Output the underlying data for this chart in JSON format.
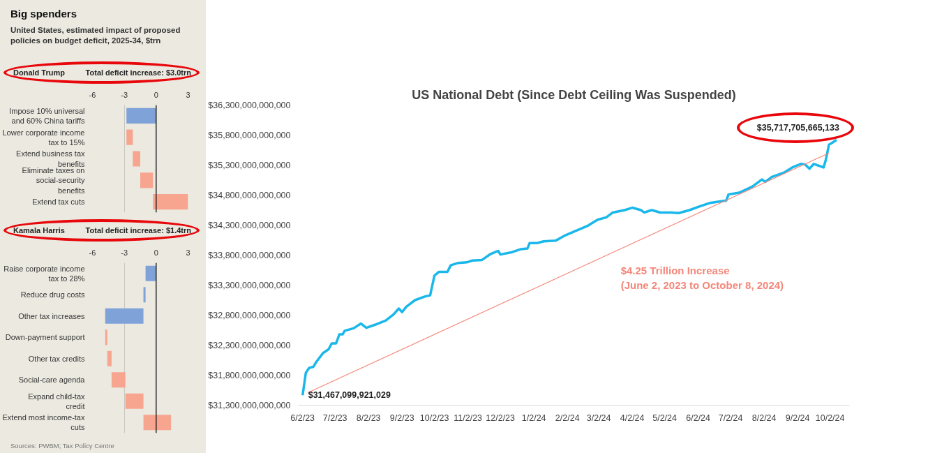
{
  "chart_data": [
    {
      "type": "bar",
      "title": "Big spenders",
      "subtitle": "United States, estimated impact of proposed policies on budget deficit, 2025-34, $trn",
      "orientation": "horizontal",
      "categories": [
        "Impose 10% universal and 60% China tariffs",
        "Lower corporate income tax to 15%",
        "Extend business tax benefits",
        "Eliminate taxes on social-security benefits",
        "Extend tax cuts"
      ],
      "base": [
        0,
        -2.8,
        -2.2,
        -1.5,
        -0.3
      ],
      "values": [
        -2.8,
        0.6,
        0.7,
        1.2,
        3.3
      ],
      "colors": [
        "#7fa3d9",
        "#f7a58f",
        "#f7a58f",
        "#f7a58f",
        "#f7a58f"
      ],
      "xlim": [
        -6,
        3
      ],
      "xticks": [
        -6,
        -3,
        0,
        3
      ],
      "grid": "x",
      "ref_lines": [
        {
          "axis": "x",
          "value": 0,
          "color": "#000000"
        }
      ],
      "annotations": [
        "Donald Trump",
        "Total deficit increase: $3.0trn"
      ]
    },
    {
      "type": "bar",
      "orientation": "horizontal",
      "categories": [
        "Raise corporate income tax to 28%",
        "Reduce drug costs",
        "Other tax increases",
        "Down-payment support",
        "Other tax credits",
        "Social-care agenda",
        "Expand child-tax credit",
        "Extend most income-tax cuts"
      ],
      "base": [
        0,
        -1.0,
        -1.2,
        -4.8,
        -4.6,
        -4.2,
        -2.9,
        -1.2
      ],
      "values": [
        -1.0,
        -0.2,
        -3.6,
        0.2,
        0.4,
        1.3,
        1.7,
        2.6
      ],
      "colors": [
        "#7fa3d9",
        "#7fa3d9",
        "#7fa3d9",
        "#f7a58f",
        "#f7a58f",
        "#f7a58f",
        "#f7a58f",
        "#f7a58f"
      ],
      "xlim": [
        -6,
        3
      ],
      "xticks": [
        -6,
        -3,
        0,
        3
      ],
      "grid": "x",
      "ref_lines": [
        {
          "axis": "x",
          "value": 0,
          "color": "#000000"
        }
      ],
      "annotations": [
        "Kamala Harris",
        "Total deficit increase: $1.4trn",
        "Sources: PWBM; Tax Policy Centre"
      ]
    },
    {
      "type": "line",
      "title": "US National Debt (Since Debt Ceiling Was Suspended)",
      "xlim": [
        "2023-05-29",
        "2024-10-20"
      ],
      "ylim": [
        31300000000000,
        36300000000000
      ],
      "xticks": [
        {
          "value": "2023-06-02",
          "label": "6/2/23"
        },
        {
          "value": "2023-07-02",
          "label": "7/2/23"
        },
        {
          "value": "2023-08-02",
          "label": "8/2/23"
        },
        {
          "value": "2023-09-02",
          "label": "9/2/23"
        },
        {
          "value": "2023-10-02",
          "label": "10/2/23"
        },
        {
          "value": "2023-11-02",
          "label": "11/2/23"
        },
        {
          "value": "2023-12-02",
          "label": "12/2/23"
        },
        {
          "value": "2024-01-02",
          "label": "1/2/24"
        },
        {
          "value": "2024-02-02",
          "label": "2/2/24"
        },
        {
          "value": "2024-03-02",
          "label": "3/2/24"
        },
        {
          "value": "2024-04-02",
          "label": "4/2/24"
        },
        {
          "value": "2024-05-02",
          "label": "5/2/24"
        },
        {
          "value": "2024-06-02",
          "label": "6/2/24"
        },
        {
          "value": "2024-07-02",
          "label": "7/2/24"
        },
        {
          "value": "2024-08-02",
          "label": "8/2/24"
        },
        {
          "value": "2024-09-02",
          "label": "9/2/24"
        },
        {
          "value": "2024-10-02",
          "label": "10/2/24"
        }
      ],
      "yticks": [
        {
          "value": 31300000000000,
          "label": "$31,300,000,000,000"
        },
        {
          "value": 31800000000000,
          "label": "$31,800,000,000,000"
        },
        {
          "value": 32300000000000,
          "label": "$32,300,000,000,000"
        },
        {
          "value": 32800000000000,
          "label": "$32,800,000,000,000"
        },
        {
          "value": 33300000000000,
          "label": "$33,300,000,000,000"
        },
        {
          "value": 33800000000000,
          "label": "$33,800,000,000,000"
        },
        {
          "value": 34300000000000,
          "label": "$34,300,000,000,000"
        },
        {
          "value": 34800000000000,
          "label": "$34,800,000,000,000"
        },
        {
          "value": 35300000000000,
          "label": "$35,300,000,000,000"
        },
        {
          "value": 35800000000000,
          "label": "$35,800,000,000,000"
        },
        {
          "value": 36300000000000,
          "label": "$36,300,000,000,000"
        }
      ],
      "series": [
        {
          "type": "line",
          "color": "#1ab7ea",
          "x": [
            "2023-06-02",
            "2023-06-05",
            "2023-06-08",
            "2023-06-12",
            "2023-06-15",
            "2023-06-21",
            "2023-06-26",
            "2023-06-29",
            "2023-07-03",
            "2023-07-06",
            "2023-07-09",
            "2023-07-11",
            "2023-07-19",
            "2023-07-26",
            "2023-07-31",
            "2023-08-08",
            "2023-08-18",
            "2023-08-25",
            "2023-08-30",
            "2023-09-02",
            "2023-09-06",
            "2023-09-14",
            "2023-09-23",
            "2023-09-28",
            "2023-10-02",
            "2023-10-06",
            "2023-10-14",
            "2023-10-17",
            "2023-10-24",
            "2023-11-01",
            "2023-11-06",
            "2023-11-15",
            "2023-11-23",
            "2023-11-30",
            "2023-12-02",
            "2023-12-13",
            "2023-12-21",
            "2023-12-27",
            "2023-12-29",
            "2024-01-05",
            "2024-01-11",
            "2024-01-22",
            "2024-01-30",
            "2024-02-08",
            "2024-02-21",
            "2024-03-01",
            "2024-03-09",
            "2024-03-15",
            "2024-03-26",
            "2024-04-02",
            "2024-04-10",
            "2024-04-13",
            "2024-04-20",
            "2024-04-28",
            "2024-05-08",
            "2024-05-15",
            "2024-05-25",
            "2024-06-03",
            "2024-06-13",
            "2024-06-28",
            "2024-06-30",
            "2024-07-10",
            "2024-07-22",
            "2024-07-31",
            "2024-08-03",
            "2024-08-09",
            "2024-08-21",
            "2024-08-28",
            "2024-09-05",
            "2024-09-09",
            "2024-09-13",
            "2024-09-17",
            "2024-09-26",
            "2024-09-28",
            "2024-10-01",
            "2024-10-03",
            "2024-10-08"
          ],
          "values": [
            31467099921029,
            31840000000000,
            31920000000000,
            31940000000000,
            32030000000000,
            32170000000000,
            32230000000000,
            32330000000000,
            32330000000000,
            32480000000000,
            32480000000000,
            32540000000000,
            32580000000000,
            32660000000000,
            32590000000000,
            32640000000000,
            32710000000000,
            32810000000000,
            32910000000000,
            32850000000000,
            32940000000000,
            33050000000000,
            33110000000000,
            33130000000000,
            33460000000000,
            33520000000000,
            33520000000000,
            33630000000000,
            33670000000000,
            33680000000000,
            33710000000000,
            33720000000000,
            33820000000000,
            33870000000000,
            33810000000000,
            33850000000000,
            33900000000000,
            33910000000000,
            34000000000000,
            34000000000000,
            34030000000000,
            34040000000000,
            34120000000000,
            34190000000000,
            34290000000000,
            34390000000000,
            34430000000000,
            34510000000000,
            34550000000000,
            34590000000000,
            34550000000000,
            34510000000000,
            34550000000000,
            34510000000000,
            34510000000000,
            34500000000000,
            34550000000000,
            34610000000000,
            34670000000000,
            34710000000000,
            34810000000000,
            34840000000000,
            34940000000000,
            35060000000000,
            35020000000000,
            35100000000000,
            35180000000000,
            35260000000000,
            35320000000000,
            35310000000000,
            35240000000000,
            35320000000000,
            35260000000000,
            35380000000000,
            35640000000000,
            35660000000000,
            35717705665133
          ]
        },
        {
          "type": "line",
          "color": "#f4877a",
          "x": [
            "2023-06-07",
            "2024-10-01"
          ],
          "values": [
            31510000000000,
            35500000000000
          ]
        }
      ],
      "annotations": [
        {
          "text": "$31,467,099,921,029",
          "x": "2023-06-02",
          "y": 31467099921029
        },
        {
          "text": "$35,717,705,665,133",
          "x": "2024-10-08",
          "y": 35717705665133
        },
        "$4.25 Trillion Increase",
        "(June 2, 2023 to October 8, 2024)"
      ]
    }
  ]
}
